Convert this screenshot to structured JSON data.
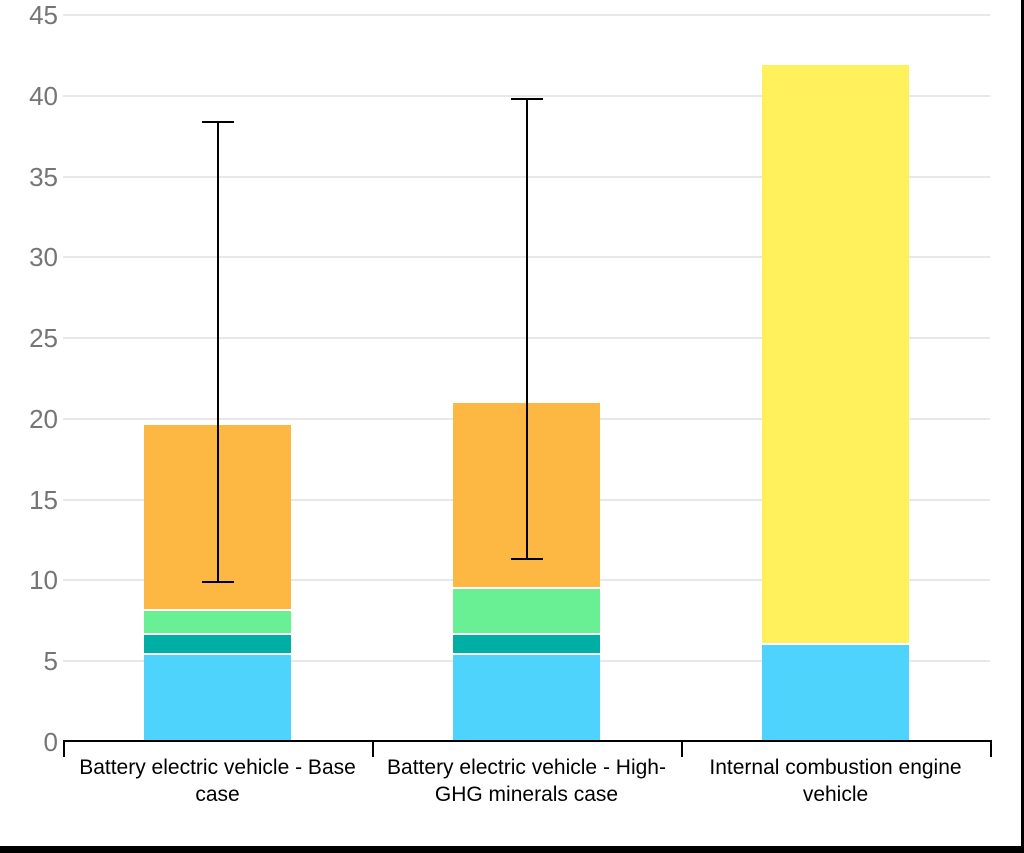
{
  "chart_data": {
    "type": "bar",
    "subtype": "stacked-vertical-with-error-bars",
    "title": "",
    "xlabel": "",
    "ylabel": "",
    "categories": [
      "Battery electric vehicle - Base case",
      "Battery electric vehicle - High-GHG minerals case",
      "Internal combustion engine vehicle"
    ],
    "series": [
      {
        "name": "cyan-segment",
        "color": "#4ed3fd",
        "values": [
          5.4,
          5.4,
          6.0
        ]
      },
      {
        "name": "teal-segment",
        "color": "#00aea3",
        "values": [
          1.2,
          1.2,
          0
        ]
      },
      {
        "name": "green-segment",
        "color": "#69f094",
        "values": [
          1.5,
          2.9,
          0
        ]
      },
      {
        "name": "orange-segment",
        "color": "#fcb843",
        "values": [
          11.5,
          11.5,
          0
        ]
      },
      {
        "name": "yellow-segment",
        "color": "#fef15c",
        "values": [
          0,
          0,
          35.9
        ]
      }
    ],
    "totals": [
      19.6,
      21.0,
      41.9
    ],
    "error_bars": [
      {
        "low": 9.9,
        "high": 38.4
      },
      {
        "low": 11.3,
        "high": 39.8
      },
      null
    ],
    "y_ticks": [
      0,
      5,
      10,
      15,
      20,
      25,
      30,
      35,
      40,
      45
    ],
    "ylim": [
      0,
      45
    ],
    "grid": true,
    "legend": "none",
    "colors": {
      "gridline": "#e8e8e8",
      "axis": "#000000",
      "error_bar": "#000000",
      "y_tick_text": "#757575",
      "x_label_text": "#000000",
      "background": "#ffffff",
      "frame_border": "#000000"
    }
  }
}
